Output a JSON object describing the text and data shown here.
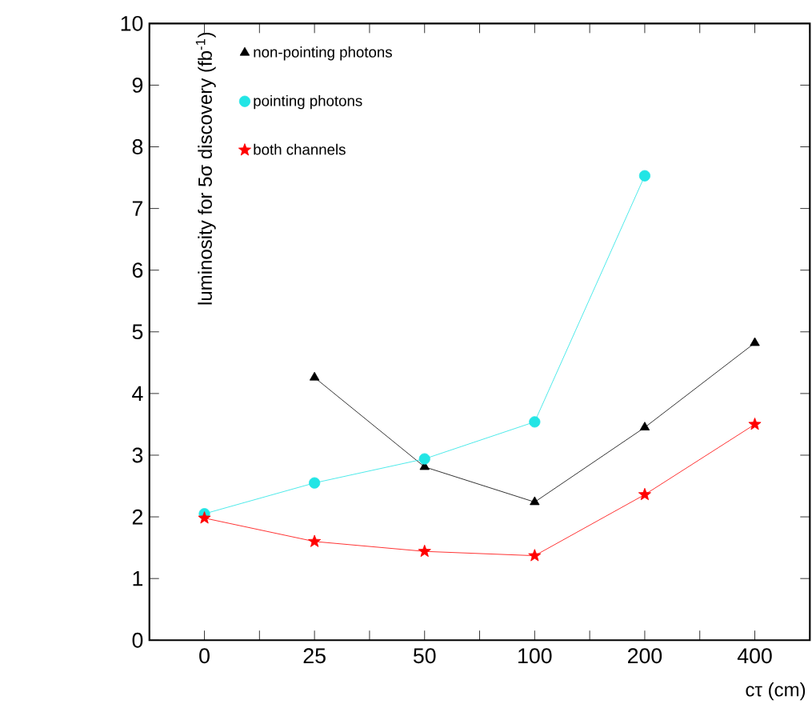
{
  "chart_data": {
    "type": "line",
    "xlabel": "cτ (cm)",
    "ylabel": "luminosity for 5σ discovery (fb$^{-1}$)",
    "categories": [
      "0",
      "25",
      "50",
      "100",
      "200",
      "400"
    ],
    "ylim": [
      0,
      10
    ],
    "yticks": [
      0,
      1,
      2,
      3,
      4,
      5,
      6,
      7,
      8,
      9,
      10
    ],
    "grid": false,
    "legend": "top left",
    "series": [
      {
        "name": "non-pointing photons",
        "color": "#000000",
        "marker": "triangle",
        "values": [
          null,
          4.26,
          2.81,
          2.24,
          3.45,
          4.82
        ]
      },
      {
        "name": "pointing photons",
        "color": "#22e5e5",
        "marker": "circle",
        "values": [
          2.05,
          2.55,
          2.94,
          3.54,
          7.53,
          null
        ]
      },
      {
        "name": "both channels",
        "color": "#ff0000",
        "marker": "star",
        "values": [
          1.98,
          1.6,
          1.44,
          1.37,
          2.36,
          3.5
        ]
      }
    ]
  }
}
